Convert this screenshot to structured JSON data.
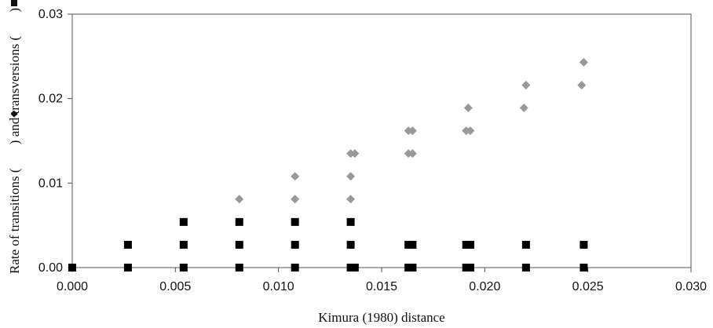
{
  "chart_data": {
    "type": "scatter",
    "title": "",
    "xlabel": "Kimura (1980) distance",
    "ylabel_parts": {
      "before_diamond": "Rate of transitions (",
      "between": ") and transversions (",
      "after_square": ")"
    },
    "xlim": [
      0,
      0.03
    ],
    "ylim": [
      0,
      0.03
    ],
    "x_ticks": [
      "0.000",
      "0.005",
      "0.010",
      "0.015",
      "0.020",
      "0.025",
      "0.030"
    ],
    "y_ticks": [
      "0.00",
      "0.01",
      "0.02",
      "0.03"
    ],
    "grid": false,
    "legend": "none",
    "series": [
      {
        "marker": "diamond",
        "color": "#999999",
        "points": [
          [
            0.0081,
            0.0081
          ],
          [
            0.0108,
            0.0081
          ],
          [
            0.0108,
            0.0108
          ],
          [
            0.0135,
            0.0081
          ],
          [
            0.0135,
            0.0108
          ],
          [
            0.0135,
            0.0135
          ],
          [
            0.0137,
            0.0135
          ],
          [
            0.0163,
            0.0135
          ],
          [
            0.0165,
            0.0135
          ],
          [
            0.0163,
            0.0162
          ],
          [
            0.0165,
            0.0162
          ],
          [
            0.0191,
            0.0162
          ],
          [
            0.0193,
            0.0162
          ],
          [
            0.0192,
            0.0189
          ],
          [
            0.0219,
            0.0189
          ],
          [
            0.022,
            0.0216
          ],
          [
            0.0247,
            0.0216
          ],
          [
            0.0248,
            0.0243
          ]
        ]
      },
      {
        "marker": "square",
        "color": "#000000",
        "points": [
          [
            0.0,
            0.0
          ],
          [
            0.0027,
            0.0
          ],
          [
            0.0027,
            0.0027
          ],
          [
            0.0054,
            0.0
          ],
          [
            0.0054,
            0.0027
          ],
          [
            0.0054,
            0.0054
          ],
          [
            0.0081,
            0.0
          ],
          [
            0.0081,
            0.0027
          ],
          [
            0.0081,
            0.0054
          ],
          [
            0.0108,
            0.0
          ],
          [
            0.0108,
            0.0027
          ],
          [
            0.0108,
            0.0054
          ],
          [
            0.0135,
            0.0
          ],
          [
            0.0137,
            0.0
          ],
          [
            0.0135,
            0.0027
          ],
          [
            0.0135,
            0.0054
          ],
          [
            0.0163,
            0.0
          ],
          [
            0.0165,
            0.0
          ],
          [
            0.0163,
            0.0027
          ],
          [
            0.0165,
            0.0027
          ],
          [
            0.0191,
            0.0
          ],
          [
            0.0193,
            0.0
          ],
          [
            0.0191,
            0.0027
          ],
          [
            0.0193,
            0.0027
          ],
          [
            0.022,
            0.0
          ],
          [
            0.022,
            0.0027
          ],
          [
            0.0248,
            0.0
          ],
          [
            0.0248,
            0.0027
          ]
        ]
      }
    ]
  }
}
